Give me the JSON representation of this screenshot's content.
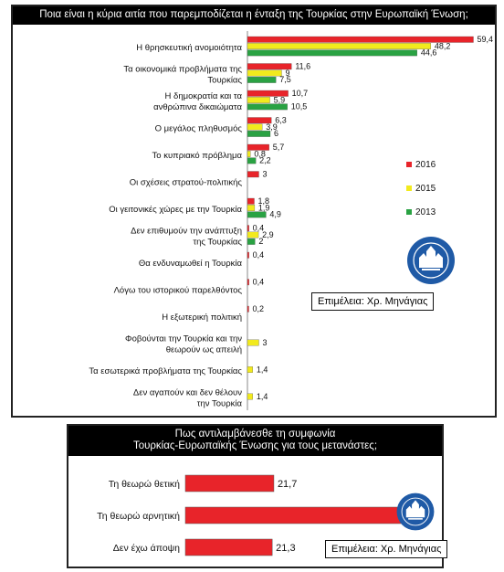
{
  "charts": [
    {
      "chart_data": {
        "type": "bar",
        "orientation": "horizontal",
        "title": "Ποια είναι η κύρια αιτία που παρεμποδίζεται η ένταξη της Τουρκίας στην Ευρωπαϊκή Ένωση;",
        "categories": [
          "Η θρησκευτική ανομοιότητα",
          "Τα οικονομικά προβλήματα της Τουρκίας",
          "Η δημοκρατία και τα ανθρώπινα δικαιώματα",
          "Ο μεγάλος πληθυσμός",
          "Το κυπριακό πρόβλημα",
          "Οι σχέσεις στρατού-πολιτικής",
          "Οι γειτονικές χώρες με την Τουρκία",
          "Δεν επιθυμούν την ανάπτυξη της Τουρκίας",
          "Θα ενδυναμωθεί η Τουρκία",
          "Λόγω του ιστορικού παρελθόντος",
          "Η εξωτερική πολιτική",
          "Φοβούνται την Τουρκία και την θεωρούν ως απειλή",
          "Τα εσωτερικά προβλήματα της Τουρκίας",
          "Δεν αγαπούν και δεν θέλουν την Τουρκία"
        ],
        "series": [
          {
            "name": "2016",
            "color": "#e8242a",
            "values": [
              59.4,
              11.6,
              10.7,
              6.3,
              5.7,
              3,
              1.8,
              0.4,
              0.4,
              0.4,
              0.2,
              null,
              null,
              null
            ],
            "labels": [
              "59,4",
              "11,6",
              "10,7",
              "6,3",
              "5,7",
              "3",
              "1,8",
              "0,4",
              "0,4",
              "0,4",
              "0,2",
              "",
              "",
              ""
            ]
          },
          {
            "name": "2015",
            "color": "#f2ea1d",
            "values": [
              48.2,
              9,
              5.9,
              3.9,
              0.8,
              null,
              1.9,
              2.9,
              null,
              null,
              null,
              3,
              1.4,
              1.4
            ],
            "labels": [
              "48,2",
              "9",
              "5,9",
              "3,9",
              "0,8",
              "",
              "1,9",
              "2,9",
              "",
              "",
              "",
              "3",
              "1,4",
              "1,4"
            ]
          },
          {
            "name": "2013",
            "color": "#2aa243",
            "values": [
              44.6,
              7.5,
              10.5,
              6,
              2.2,
              null,
              4.9,
              2,
              null,
              null,
              null,
              null,
              null,
              null
            ],
            "labels": [
              "44,6",
              "7,5",
              "10,5",
              "6",
              "2,2",
              "",
              "4,9",
              "2",
              "",
              "",
              "",
              "",
              "",
              ""
            ]
          }
        ],
        "legend_position": "right",
        "grid": false,
        "xlim": [
          0,
          60
        ]
      },
      "credit": "Επιμέλεια: Χρ. Μηνάγιας",
      "logo": "KADIR HAS UNIVERSITESI"
    },
    {
      "chart_data": {
        "type": "bar",
        "orientation": "horizontal",
        "title": "Πως αντιλαμβάνεσθε τη συμφωνία Τουρκίας-Ευρωπαϊκής Ένωσης για τους μετανάστες;",
        "categories": [
          "Τη θεωρώ θετική",
          "Τη θεωρώ αρνητική",
          "Δεν έχω άποψη"
        ],
        "series": [
          {
            "color": "#e8242a",
            "values": [
              21.7,
              57,
              21.3
            ],
            "labels": [
              "21,7",
              "57",
              "21,3"
            ]
          }
        ],
        "grid": false,
        "xlim": [
          0,
          60
        ]
      },
      "credit": "Επιμέλεια: Χρ. Μηνάγιας",
      "logo": "KADIR HAS UNIVERSITESI"
    }
  ],
  "title1_lines": [
    "Ποια είναι η κύρια αιτία που παρεμποδίζεται η ένταξη της Τουρκίας στην Ευρωπαϊκή Ένωση;"
  ],
  "title2_lines": [
    "Πως αντιλαμβάνεσθε τη συμφωνία",
    "Τουρκίας-Ευρωπαϊκής Ένωσης για τους μετανάστες;"
  ]
}
